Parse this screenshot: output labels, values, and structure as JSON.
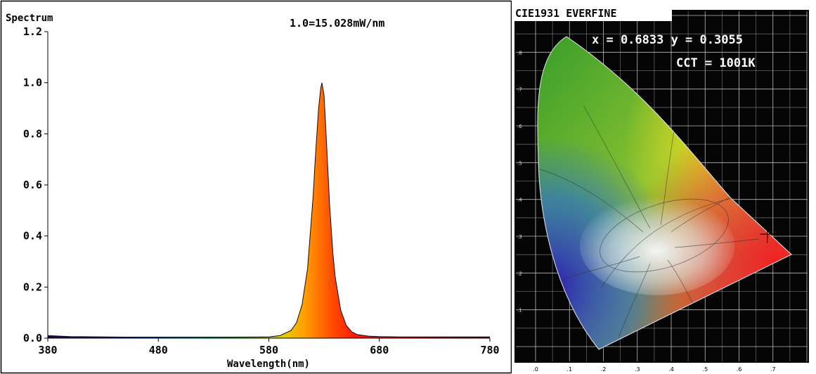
{
  "chart_data": [
    {
      "type": "area",
      "title": "1.0=15.028mW/nm",
      "ylabel": "Spectrum",
      "xlabel": "Wavelength(nm)",
      "xlim": [
        380,
        780
      ],
      "ylim": [
        0,
        1.2
      ],
      "x_ticks": [
        380,
        480,
        580,
        680,
        780
      ],
      "x_tick_labels": [
        "380",
        "480",
        "580",
        "680",
        "780"
      ],
      "y_ticks": [
        0.0,
        0.2,
        0.4,
        0.6,
        0.8,
        1.0,
        1.2
      ],
      "y_tick_labels": [
        "0.0",
        "0.2",
        "0.4",
        "0.6",
        "0.8",
        "1.0",
        "1.2"
      ],
      "grid": false,
      "fill": "wavelength-colored",
      "series": [
        {
          "x": [
            380,
            400,
            450,
            500,
            550,
            580,
            590,
            600,
            605,
            610,
            615,
            620,
            622,
            625,
            627,
            628,
            630,
            632,
            635,
            638,
            640,
            645,
            650,
            655,
            660,
            670,
            680,
            700,
            750,
            780
          ],
          "values": [
            0.01,
            0.006,
            0.004,
            0.004,
            0.004,
            0.005,
            0.01,
            0.03,
            0.06,
            0.13,
            0.27,
            0.55,
            0.7,
            0.9,
            0.98,
            1.0,
            0.95,
            0.78,
            0.52,
            0.33,
            0.24,
            0.11,
            0.05,
            0.025,
            0.014,
            0.008,
            0.006,
            0.005,
            0.005,
            0.005
          ]
        }
      ]
    },
    {
      "type": "scatter",
      "title": "CIE1931 EVERFINE",
      "xlim": [
        0,
        0.8
      ],
      "ylim": [
        0,
        0.9
      ],
      "point": {
        "x": 0.6833,
        "y": 0.3055
      },
      "readout_coords": "x = 0.6833 y = 0.3055",
      "readout_cct": "CCT = 1001K",
      "axis_tick_labels_x": [
        ".0",
        ".1",
        ".2",
        ".3",
        ".4",
        ".5",
        ".6",
        ".7"
      ],
      "axis_tick_labels_y": [
        ".1",
        ".2",
        ".3",
        ".4",
        ".5",
        ".6",
        ".7",
        ".8"
      ],
      "grid": true
    }
  ]
}
